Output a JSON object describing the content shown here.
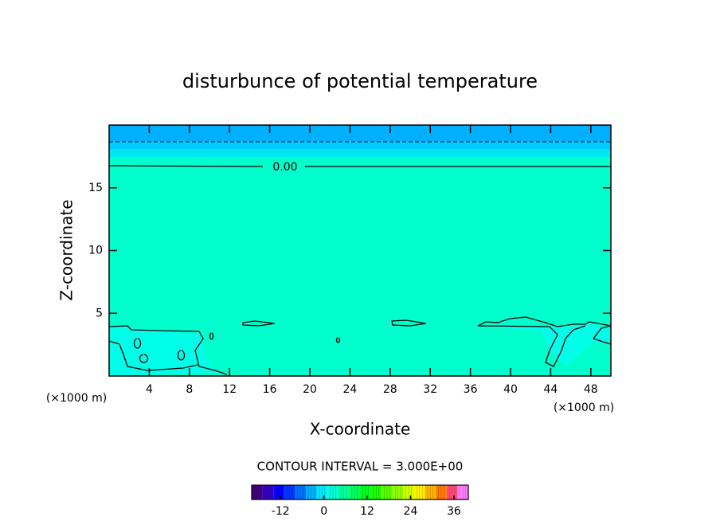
{
  "chart_data": {
    "type": "contour",
    "title": "disturbunce of potential temperature",
    "x_label": "X-coordinate",
    "y_label": "Z-coordinate",
    "x_unit_left": "(×1000 m)",
    "x_unit_right": "(×1000 m)",
    "xlim": [
      0,
      50
    ],
    "xticks": [
      4,
      8,
      12,
      16,
      20,
      24,
      28,
      32,
      36,
      40,
      44,
      48
    ],
    "ylim": [
      0,
      20
    ],
    "yticks": [
      5,
      10,
      15
    ],
    "contour_label": "0.00",
    "footer": "CONTOUR INTERVAL = 3.000E+00",
    "colorbar": {
      "lim": [
        -20,
        40
      ],
      "interval": 3,
      "ticks": [
        -12,
        0,
        12,
        24,
        36
      ]
    }
  }
}
